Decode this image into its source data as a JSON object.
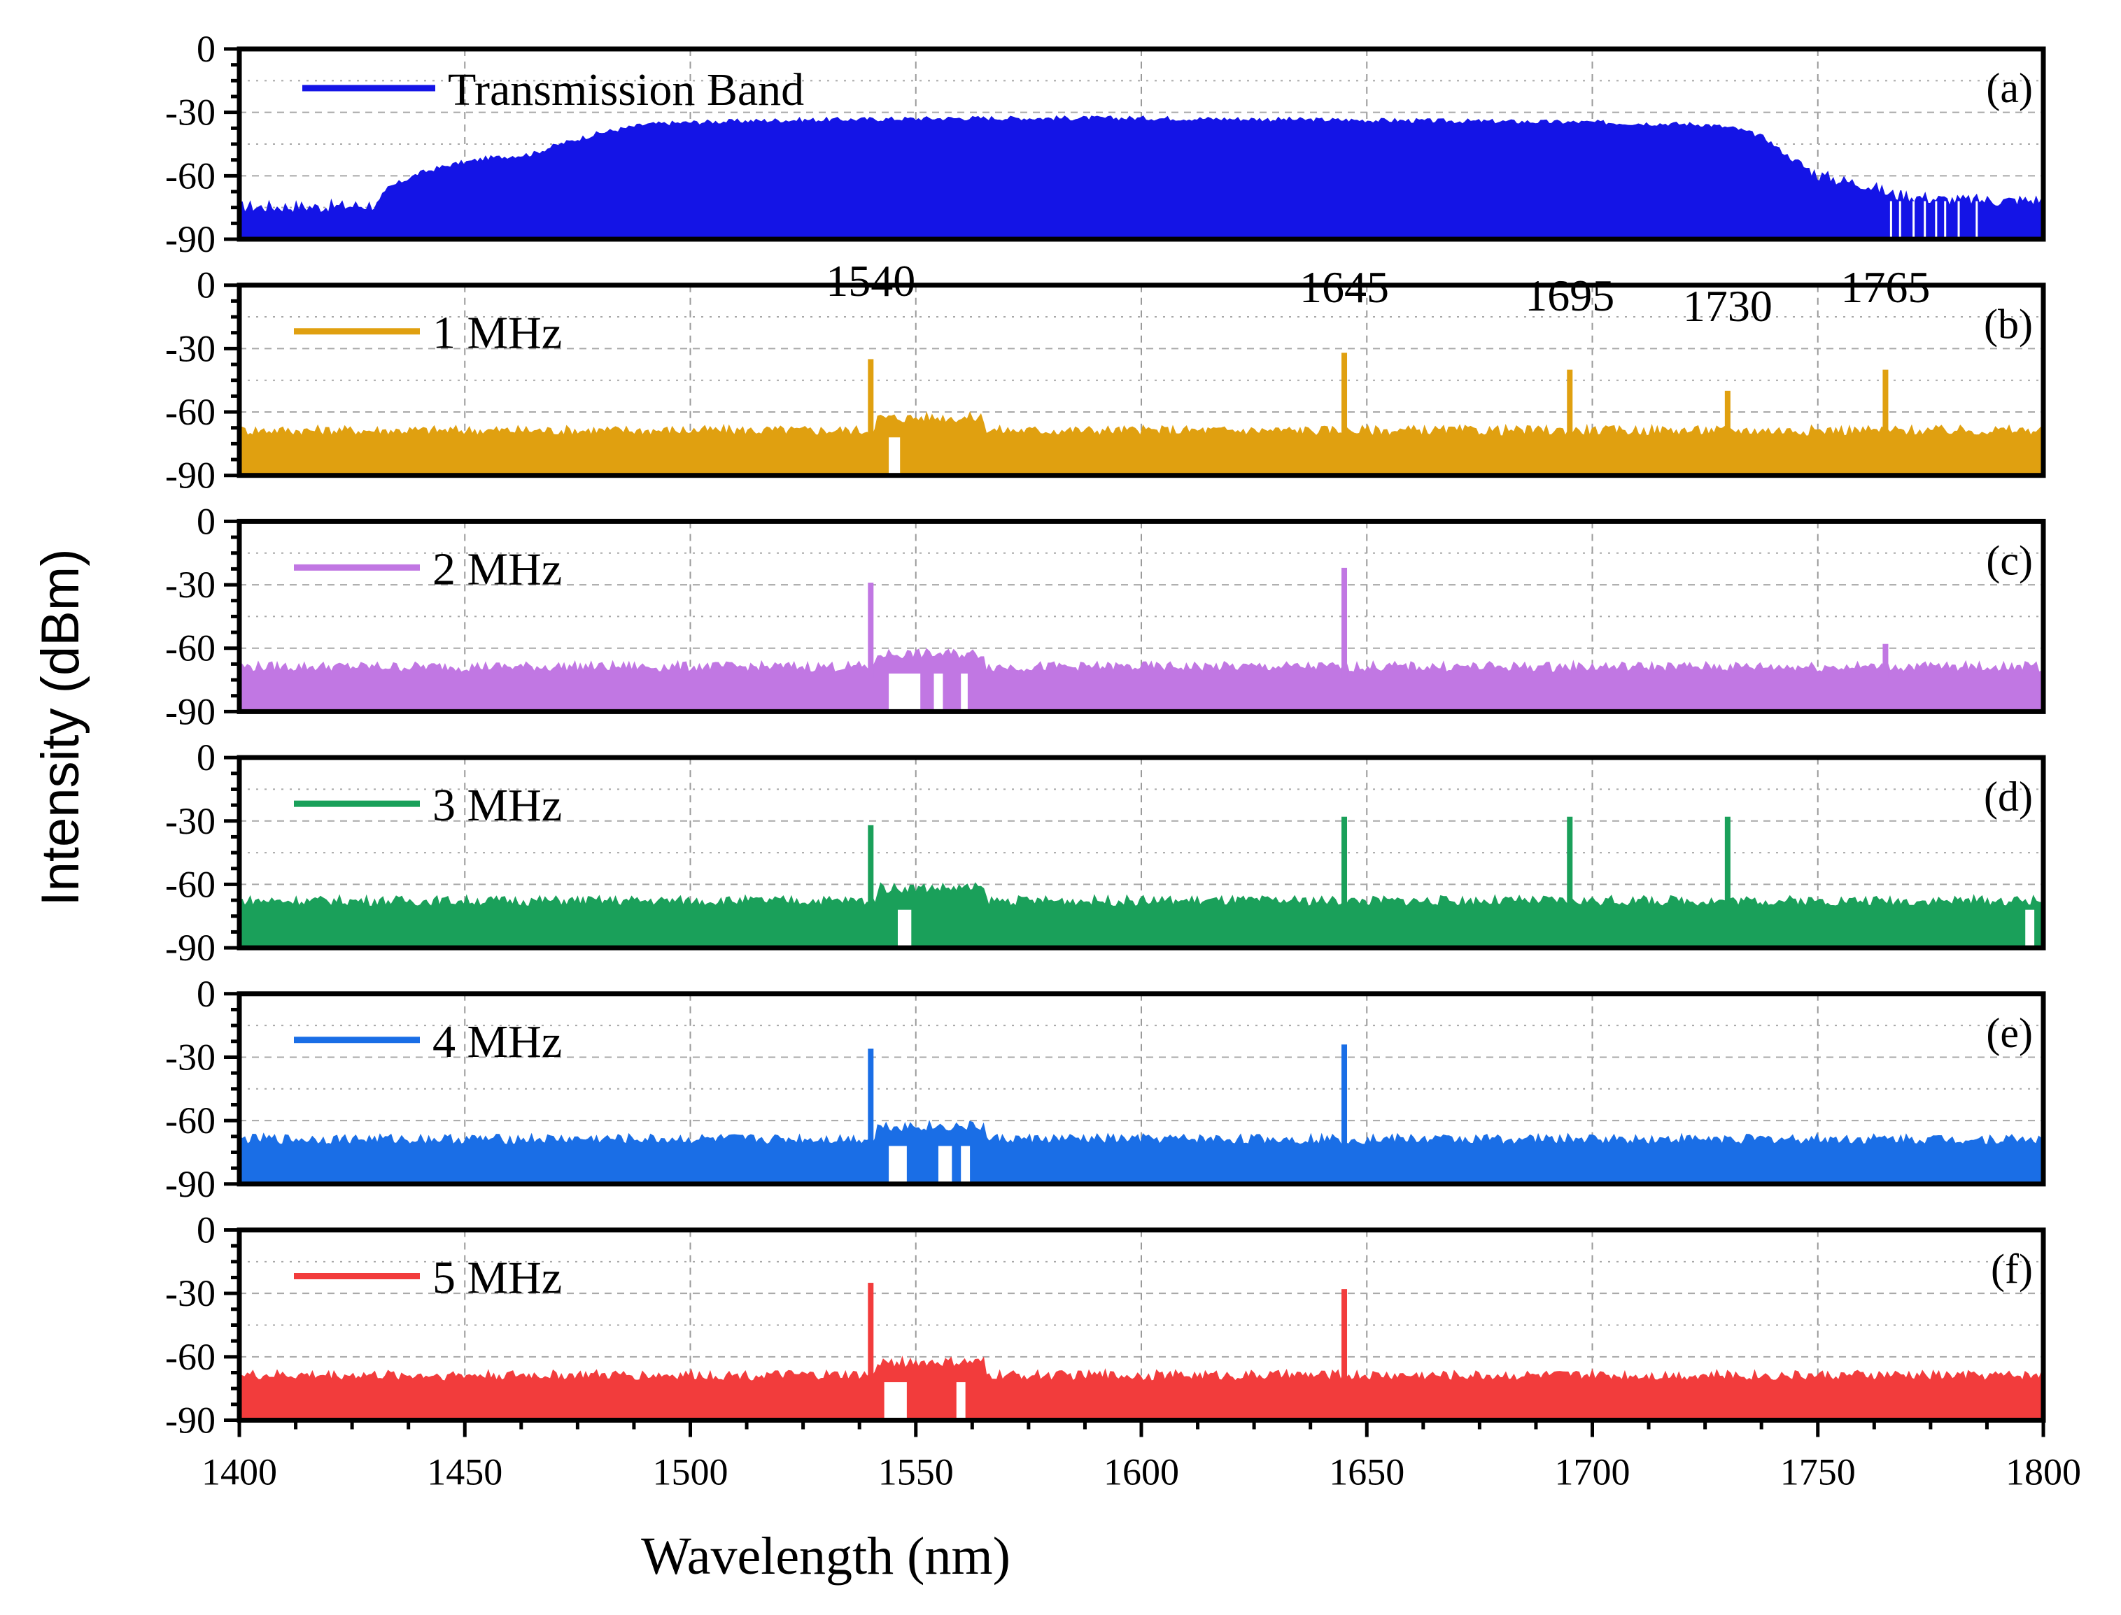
{
  "chart_data": {
    "type": "line",
    "xlabel": "Wavelength (nm)",
    "ylabel": "Intensity (dBm)",
    "xlim": [
      1400,
      1800
    ],
    "x_ticks": [
      "1400",
      "1450",
      "1500",
      "1550",
      "1600",
      "1650",
      "1700",
      "1750",
      "1800"
    ],
    "ylim": [
      -90,
      0
    ],
    "y_ticks": [
      "0",
      "-30",
      "-60",
      "-90"
    ],
    "grid": true,
    "panels": [
      {
        "tag": "(a)",
        "legend": "Transmission Band",
        "color": "#1414e6",
        "noise_floor": -76,
        "spectrum": [
          [
            1400,
            -75
          ],
          [
            1420,
            -75
          ],
          [
            1431,
            -74
          ],
          [
            1433,
            -66
          ],
          [
            1440,
            -59
          ],
          [
            1447,
            -55
          ],
          [
            1455,
            -52
          ],
          [
            1465,
            -50
          ],
          [
            1470,
            -46
          ],
          [
            1480,
            -40
          ],
          [
            1490,
            -36
          ],
          [
            1500,
            -35
          ],
          [
            1520,
            -34
          ],
          [
            1560,
            -33
          ],
          [
            1600,
            -33
          ],
          [
            1650,
            -34
          ],
          [
            1700,
            -35
          ],
          [
            1725,
            -36
          ],
          [
            1732,
            -38
          ],
          [
            1738,
            -42
          ],
          [
            1744,
            -52
          ],
          [
            1750,
            -60
          ],
          [
            1756,
            -63
          ],
          [
            1760,
            -64
          ],
          [
            1766,
            -69
          ],
          [
            1780,
            -72
          ],
          [
            1800,
            -72
          ]
        ],
        "peaks": [],
        "peak_labels": []
      },
      {
        "tag": "(b)",
        "legend": "1 MHz",
        "color": "#e0a010",
        "noise_floor": -72,
        "spectrum": [],
        "peaks": [
          {
            "x": 1540,
            "y": -35
          },
          {
            "x": 1645,
            "y": -32
          },
          {
            "x": 1695,
            "y": -40
          },
          {
            "x": 1730,
            "y": -50
          },
          {
            "x": 1765,
            "y": -40
          }
        ],
        "peak_labels": [
          "1540",
          "1645",
          "1695",
          "1730",
          "1765"
        ]
      },
      {
        "tag": "(c)",
        "legend": "2 MHz",
        "color": "#c177e3",
        "noise_floor": -72,
        "spectrum": [],
        "peaks": [
          {
            "x": 1540,
            "y": -29
          },
          {
            "x": 1645,
            "y": -22
          },
          {
            "x": 1765,
            "y": -58
          }
        ],
        "peak_labels": []
      },
      {
        "tag": "(d)",
        "legend": "3 MHz",
        "color": "#1aa05a",
        "noise_floor": -71,
        "spectrum": [],
        "peaks": [
          {
            "x": 1540,
            "y": -32
          },
          {
            "x": 1645,
            "y": -28
          },
          {
            "x": 1695,
            "y": -28
          },
          {
            "x": 1730,
            "y": -28
          }
        ],
        "peak_labels": []
      },
      {
        "tag": "(e)",
        "legend": "4 MHz",
        "color": "#1a6ee6",
        "noise_floor": -72,
        "spectrum": [],
        "peaks": [
          {
            "x": 1540,
            "y": -26
          },
          {
            "x": 1645,
            "y": -24
          }
        ],
        "peak_labels": []
      },
      {
        "tag": "(f)",
        "legend": "5 MHz",
        "color": "#f23c3c",
        "noise_floor": -72,
        "spectrum": [],
        "peaks": [
          {
            "x": 1540,
            "y": -25
          },
          {
            "x": 1645,
            "y": -28
          }
        ],
        "peak_labels": []
      }
    ]
  }
}
